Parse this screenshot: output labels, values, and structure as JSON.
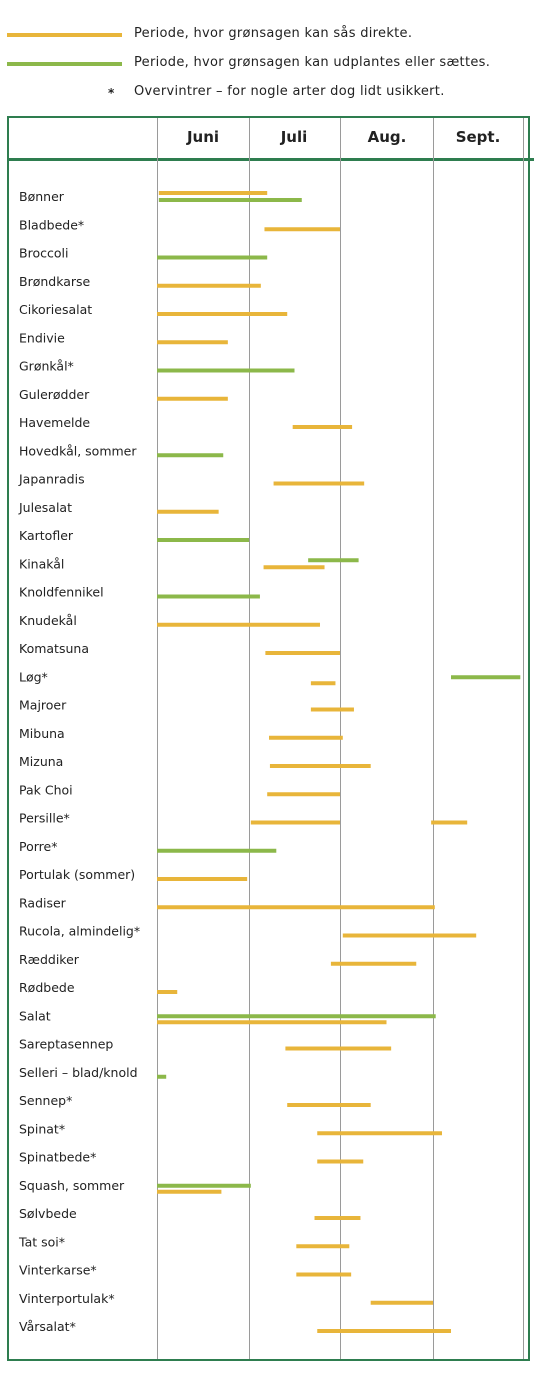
{
  "legend": {
    "items": [
      {
        "label": "Periode, hvor grønsagen kan sås direkte.",
        "color": "#e8b53a",
        "kind": "line"
      },
      {
        "label": "Periode, hvor grønsagen kan udplantes eller sættes.",
        "color": "#8cb84a",
        "kind": "line"
      },
      {
        "label": "Overvintrer – for nogle arter dog lidt usikkert.",
        "symbol": "*",
        "kind": "star"
      }
    ]
  },
  "chart_data": {
    "type": "gantt",
    "x_unit": "months",
    "months": [
      "Juni",
      "Juli",
      "Aug.",
      "Sept."
    ],
    "xlim": [
      0,
      4
    ],
    "colors": {
      "sow": "#e8b53a",
      "plant": "#8cb84a"
    },
    "rows": [
      {
        "name": "Bønner",
        "sow": [
          [
            0.02,
            1.2
          ]
        ],
        "plant": [
          [
            0.02,
            1.58
          ]
        ]
      },
      {
        "name": "Bladbede*",
        "sow": [
          [
            1.17,
            2.0
          ]
        ],
        "plant": []
      },
      {
        "name": "Broccoli",
        "sow": [],
        "plant": [
          [
            0.0,
            1.2
          ]
        ]
      },
      {
        "name": "Brøndkarse",
        "sow": [
          [
            0.0,
            1.13
          ]
        ],
        "plant": []
      },
      {
        "name": "Cikoriesalat",
        "sow": [
          [
            0.0,
            1.42
          ]
        ],
        "plant": []
      },
      {
        "name": "Endivie",
        "sow": [
          [
            0.0,
            0.77
          ]
        ],
        "plant": []
      },
      {
        "name": "Grønkål*",
        "sow": [],
        "plant": [
          [
            0.0,
            1.5
          ]
        ]
      },
      {
        "name": "Gulerødder",
        "sow": [
          [
            0.0,
            0.77
          ]
        ],
        "plant": []
      },
      {
        "name": "Havemelde",
        "sow": [
          [
            1.48,
            2.13
          ]
        ],
        "plant": []
      },
      {
        "name": "Hovedkål, sommer",
        "sow": [],
        "plant": [
          [
            0.0,
            0.72
          ]
        ]
      },
      {
        "name": "Japanradis",
        "sow": [
          [
            1.27,
            2.26
          ]
        ],
        "plant": []
      },
      {
        "name": "Julesalat",
        "sow": [
          [
            0.0,
            0.67
          ]
        ],
        "plant": []
      },
      {
        "name": "Kartofler",
        "sow": [],
        "plant": [
          [
            0.0,
            1.0
          ]
        ]
      },
      {
        "name": "Kinakål",
        "sow": [
          [
            1.16,
            1.83
          ]
        ],
        "plant": [
          [
            1.65,
            2.2
          ]
        ]
      },
      {
        "name": "Knoldfennikel",
        "sow": [],
        "plant": [
          [
            0.0,
            1.12
          ]
        ]
      },
      {
        "name": "Knudekål",
        "sow": [
          [
            0.0,
            1.78
          ]
        ],
        "plant": []
      },
      {
        "name": "Komatsuna",
        "sow": [
          [
            1.18,
            2.0
          ]
        ],
        "plant": []
      },
      {
        "name": "Løg*",
        "sow": [
          [
            1.68,
            1.95
          ]
        ],
        "plant": [
          [
            3.2,
            3.97
          ]
        ]
      },
      {
        "name": "Majroer",
        "sow": [
          [
            1.68,
            2.15
          ]
        ],
        "plant": []
      },
      {
        "name": "Mibuna",
        "sow": [
          [
            1.22,
            2.03
          ]
        ],
        "plant": []
      },
      {
        "name": "Mizuna",
        "sow": [
          [
            1.23,
            2.33
          ]
        ],
        "plant": []
      },
      {
        "name": "Pak Choi",
        "sow": [
          [
            1.2,
            2.0
          ]
        ],
        "plant": []
      },
      {
        "name": "Persille*",
        "sow": [
          [
            1.02,
            2.0
          ],
          [
            2.98,
            3.38
          ]
        ],
        "plant": []
      },
      {
        "name": "Porre*",
        "sow": [],
        "plant": [
          [
            0.0,
            1.3
          ]
        ]
      },
      {
        "name": "Portulak (sommer)",
        "sow": [
          [
            0.0,
            0.98
          ]
        ],
        "plant": []
      },
      {
        "name": "Radiser",
        "sow": [
          [
            0.0,
            3.02
          ]
        ],
        "plant": []
      },
      {
        "name": "Rucola, almindelig*",
        "sow": [
          [
            2.03,
            3.48
          ]
        ],
        "plant": []
      },
      {
        "name": "Ræddiker",
        "sow": [
          [
            1.9,
            2.82
          ]
        ],
        "plant": []
      },
      {
        "name": "Rødbede",
        "sow": [
          [
            0.0,
            0.22
          ]
        ],
        "plant": []
      },
      {
        "name": "Salat",
        "sow": [
          [
            0.0,
            2.5
          ]
        ],
        "plant": [
          [
            0.0,
            3.03
          ]
        ]
      },
      {
        "name": "Sareptasennep",
        "sow": [
          [
            1.4,
            2.55
          ]
        ],
        "plant": []
      },
      {
        "name": "Selleri – blad/knold",
        "sow": [],
        "plant": [
          [
            0.0,
            0.1
          ]
        ]
      },
      {
        "name": "Sennep*",
        "sow": [
          [
            1.42,
            2.33
          ]
        ],
        "plant": []
      },
      {
        "name": "Spinat*",
        "sow": [
          [
            1.75,
            3.1
          ]
        ],
        "plant": []
      },
      {
        "name": "Spinatbede*",
        "sow": [
          [
            1.75,
            2.25
          ]
        ],
        "plant": []
      },
      {
        "name": "Squash, sommer",
        "sow": [
          [
            0.0,
            0.7
          ]
        ],
        "plant": [
          [
            0.0,
            1.02
          ]
        ]
      },
      {
        "name": "Sølvbede",
        "sow": [
          [
            1.72,
            2.22
          ]
        ],
        "plant": []
      },
      {
        "name": "Tat soi*",
        "sow": [
          [
            1.52,
            2.1
          ]
        ],
        "plant": []
      },
      {
        "name": "Vinterkarse*",
        "sow": [
          [
            1.52,
            2.12
          ]
        ],
        "plant": []
      },
      {
        "name": "Vinterportulak*",
        "sow": [
          [
            2.33,
            3.0
          ]
        ],
        "plant": []
      },
      {
        "name": "Vårsalat*",
        "sow": [
          [
            1.75,
            3.2
          ]
        ],
        "plant": []
      }
    ]
  }
}
